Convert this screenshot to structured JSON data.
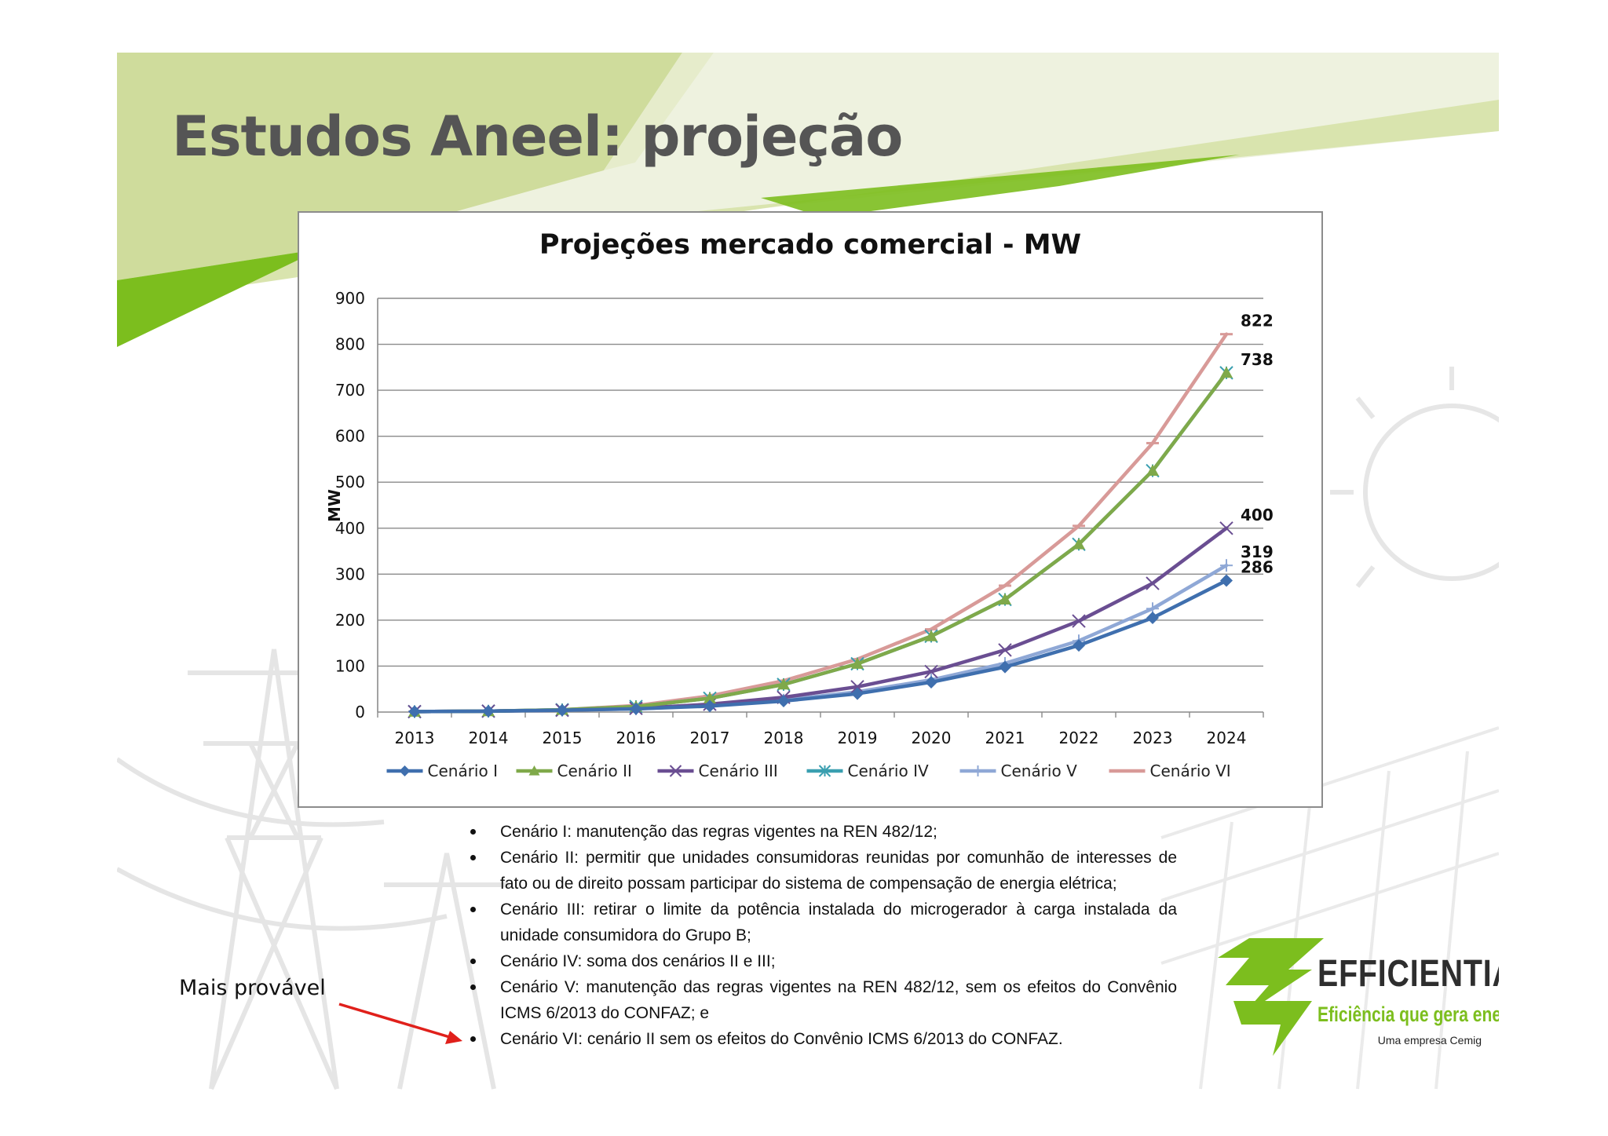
{
  "slide": {
    "title": "Estudos Aneel: projeção"
  },
  "colors": {
    "title_gray": "#555555",
    "brand_green": "#7cbe1e",
    "light_green": "#c9d98a",
    "arrow_red": "#e0201b"
  },
  "chart_data": {
    "type": "line",
    "title": "Projeções mercado comercial - MW",
    "xlabel": "",
    "ylabel": "MW",
    "ylim": [
      0,
      900
    ],
    "yticks": [
      0,
      100,
      200,
      300,
      400,
      500,
      600,
      700,
      800,
      900
    ],
    "grid": true,
    "legend_position": "bottom",
    "categories": [
      "2013",
      "2014",
      "2015",
      "2016",
      "2017",
      "2018",
      "2019",
      "2020",
      "2021",
      "2022",
      "2023",
      "2024"
    ],
    "series": [
      {
        "name": "Cenário I",
        "color": "#3f6fae",
        "marker": "diamond",
        "values": [
          1,
          2,
          4,
          7,
          13,
          24,
          40,
          65,
          98,
          145,
          205,
          286
        ],
        "end_label": "286"
      },
      {
        "name": "Cenário II",
        "color": "#7fa94a",
        "marker": "triangle",
        "values": [
          1,
          2,
          5,
          12,
          30,
          60,
          105,
          165,
          245,
          365,
          525,
          738
        ],
        "end_label": "738"
      },
      {
        "name": "Cenário III",
        "color": "#6a4e92",
        "marker": "x",
        "values": [
          1,
          2,
          4,
          8,
          17,
          32,
          55,
          88,
          135,
          198,
          280,
          400
        ],
        "end_label": "400"
      },
      {
        "name": "Cenário IV",
        "color": "#3a9fb0",
        "marker": "star",
        "values": [
          1,
          2,
          5,
          12,
          30,
          60,
          105,
          165,
          245,
          365,
          525,
          738
        ],
        "end_label": ""
      },
      {
        "name": "Cenário V",
        "color": "#8fa8d6",
        "marker": "plus",
        "values": [
          1,
          2,
          4,
          7,
          14,
          26,
          44,
          70,
          106,
          155,
          225,
          319
        ],
        "end_label": "319"
      },
      {
        "name": "Cenário VI",
        "color": "#d89a98",
        "marker": "dash",
        "values": [
          1,
          2,
          5,
          14,
          35,
          68,
          115,
          180,
          275,
          405,
          585,
          822
        ],
        "end_label": "822"
      }
    ]
  },
  "bullets": [
    "Cenário I: manutenção das regras vigentes na REN 482/12;",
    "Cenário II: permitir que unidades consumidoras reunidas por comunhão de interesses de fato ou de direito possam participar do sistema de compensação de energia elétrica;",
    " Cenário III: retirar o limite da potência instalada do microgerador à carga instalada da unidade consumidora do Grupo B;",
    "Cenário IV: soma dos cenários II e III;",
    "Cenário V: manutenção das regras vigentes na REN 482/12, sem os efeitos do Convênio ICMS 6/2013 do CONFAZ; e",
    "Cenário VI: cenário II sem os efeitos do Convênio ICMS 6/2013 do CONFAZ."
  ],
  "annotation": {
    "text": "Mais provável"
  },
  "logo": {
    "wordmark": "EFFICIENTIA",
    "tagline": "Eficiência que gera energia.",
    "subtitle": "Uma empresa Cemig"
  }
}
